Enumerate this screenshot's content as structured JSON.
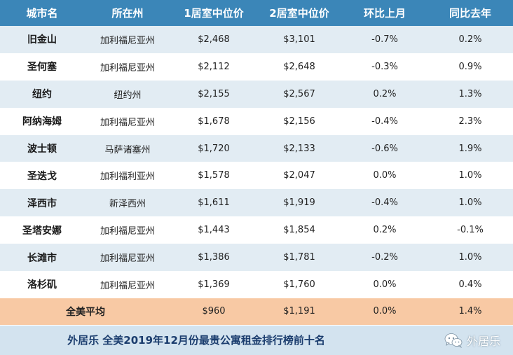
{
  "table": {
    "headers": [
      "城市名",
      "所在州",
      "1居室中位价",
      "2居室中位价",
      "环比上月",
      "同比去年"
    ],
    "rows": [
      {
        "city": "旧金山",
        "state": "加利福尼亚州",
        "one_br": "$2,468",
        "two_br": "$3,101",
        "mom": "-0.7%",
        "yoy": "0.2%"
      },
      {
        "city": "圣何塞",
        "state": "加利福尼亚州",
        "one_br": "$2,112",
        "two_br": "$2,648",
        "mom": "-0.3%",
        "yoy": "0.9%"
      },
      {
        "city": "纽约",
        "state": "纽约州",
        "one_br": "$2,155",
        "two_br": "$2,567",
        "mom": "0.2%",
        "yoy": "1.3%"
      },
      {
        "city": "阿纳海姆",
        "state": "加利福尼亚州",
        "one_br": "$1,678",
        "two_br": "$2,156",
        "mom": "-0.4%",
        "yoy": "2.3%"
      },
      {
        "city": "波士顿",
        "state": "马萨诸塞州",
        "one_br": "$1,720",
        "two_br": "$2,133",
        "mom": "-0.6%",
        "yoy": "1.9%"
      },
      {
        "city": "圣迭戈",
        "state": "加利福利亚州",
        "one_br": "$1,578",
        "two_br": "$2,047",
        "mom": "0.0%",
        "yoy": "1.0%"
      },
      {
        "city": "泽西市",
        "state": "新泽西州",
        "one_br": "$1,611",
        "two_br": "$1,919",
        "mom": "-0.4%",
        "yoy": "1.0%"
      },
      {
        "city": "圣塔安娜",
        "state": "加利福尼亚州",
        "one_br": "$1,443",
        "two_br": "$1,854",
        "mom": "0.2%",
        "yoy": "-0.1%"
      },
      {
        "city": "长滩市",
        "state": "加利福尼亚州",
        "one_br": "$1,386",
        "two_br": "$1,781",
        "mom": "-0.2%",
        "yoy": "1.0%"
      },
      {
        "city": "洛杉矶",
        "state": "加利福尼亚州",
        "one_br": "$1,369",
        "two_br": "$1,760",
        "mom": "0.0%",
        "yoy": "0.4%"
      }
    ],
    "average": {
      "label": "全美平均",
      "one_br": "$960",
      "two_br": "$1,191",
      "mom": "0.0%",
      "yoy": "1.4%"
    }
  },
  "footer": {
    "caption": "外居乐 全美2019年12月份最贵公寓租金排行榜前十名",
    "watermark": "外居乐",
    "watermark_icon": "wechat-icon"
  },
  "colors": {
    "header_bg": "#3b86b8",
    "row_alt_bg": "#e2ecf3",
    "average_bg": "#f8c9a4",
    "footer_bg": "#d3e3ef",
    "caption_text": "#1b3d6e"
  }
}
